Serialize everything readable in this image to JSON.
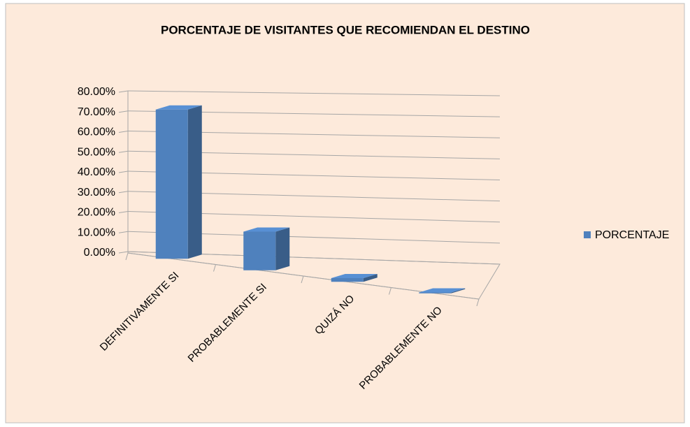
{
  "chart_data": {
    "type": "bar3d",
    "title": "PORCENTAJE DE VISITANTES QUE RECOMIENDAN  EL DESTINO",
    "categories": [
      "DEFINITIVAMENTE SI",
      "PROBABLEMENTE SI",
      "QUIZÁ NO",
      "PROBABLEMENTE NO"
    ],
    "series": [
      {
        "name": "PORCENTAJE",
        "color": "#4f81bd",
        "values": [
          77,
          20.5,
          2,
          0.5
        ]
      }
    ],
    "ylim": [
      0,
      80
    ],
    "yticks": [
      {
        "value": 0,
        "label": "0.00%"
      },
      {
        "value": 10,
        "label": "10.00%"
      },
      {
        "value": 20,
        "label": "20.00%"
      },
      {
        "value": 30,
        "label": "30.00%"
      },
      {
        "value": 40,
        "label": "40.00%"
      },
      {
        "value": 50,
        "label": "50.00%"
      },
      {
        "value": 60,
        "label": "60.00%"
      },
      {
        "value": 70,
        "label": "70.00%"
      },
      {
        "value": 80,
        "label": "80.00%"
      }
    ],
    "grid": true,
    "legend": "right"
  }
}
